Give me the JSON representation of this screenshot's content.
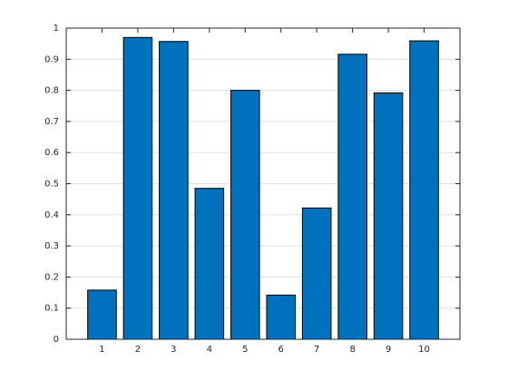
{
  "chart_data": {
    "type": "bar",
    "x": [
      1,
      2,
      3,
      4,
      5,
      6,
      7,
      8,
      9,
      10
    ],
    "values": [
      0.158,
      0.97,
      0.957,
      0.485,
      0.8,
      0.142,
      0.422,
      0.916,
      0.792,
      0.959
    ],
    "color": "#0072bd",
    "xlim": [
      0,
      11
    ],
    "xticks": [
      1,
      2,
      3,
      4,
      5,
      6,
      7,
      8,
      9,
      10
    ],
    "ylim": [
      0,
      1
    ],
    "yticks": [
      0,
      0.1,
      0.2,
      0.3,
      0.4,
      0.5,
      0.6,
      0.7,
      0.8,
      0.9,
      1
    ],
    "grid": true
  }
}
